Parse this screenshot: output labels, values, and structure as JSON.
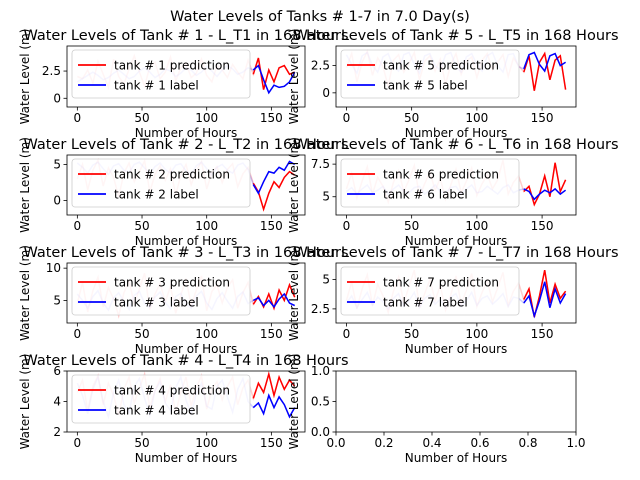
{
  "suptitle": "Water Levels of Tanks # 1-7 in 7.0 Day(s)",
  "chart_data": [
    {
      "type": "line",
      "title": "Water Levels of Tank # 1 - L_T1 in 168 Hours",
      "xlabel": "Number of Hours",
      "ylabel": "Water Level (m)",
      "xlim": [
        -8,
        176
      ],
      "ylim": [
        -0.8,
        4.8
      ],
      "xticks": [
        0,
        50,
        100,
        150
      ],
      "yticks": [
        0,
        2.5
      ],
      "legend_position": "upper left",
      "series": [
        {
          "name": "tank # 1 prediction",
          "color": "#ff0000",
          "x0": 0,
          "x_step": 4,
          "values": [
            2.0,
            1.8,
            2.6,
            1.4,
            3.4,
            2.2,
            1.0,
            3.6,
            2.0,
            1.3,
            2.7,
            3.9,
            2.4,
            1.1,
            2.9,
            3.3,
            1.8,
            2.4,
            3.8,
            1.6,
            2.8,
            3.2,
            1.9,
            2.3,
            3.6,
            2.1,
            1.5,
            3.0,
            2.6,
            1.9,
            3.1,
            2.4,
            1.8,
            3.5,
            2.2,
            3.7,
            0.8,
            2.6,
            1.5,
            2.8,
            3.0,
            2.2,
            2.4
          ]
        },
        {
          "name": "tank # 1 label",
          "color": "#0000ff",
          "x0": 0,
          "x_step": 4,
          "values": [
            1.5,
            1.8,
            2.1,
            2.4,
            2.1,
            1.7,
            1.9,
            2.3,
            2.6,
            2.2,
            1.8,
            2.0,
            2.5,
            2.8,
            2.4,
            1.9,
            2.2,
            2.7,
            2.5,
            2.0,
            2.3,
            2.8,
            2.6,
            2.1,
            2.4,
            2.9,
            2.5,
            2.0,
            2.6,
            3.0,
            2.7,
            2.2,
            2.4,
            2.8,
            2.6,
            3.0,
            1.7,
            0.5,
            1.2,
            1.0,
            1.1,
            1.5,
            2.4
          ]
        }
      ],
      "forecast_from": 136
    },
    {
      "type": "line",
      "title": "Water Levels of Tank # 5 - L_T5 in 168 Hours",
      "xlabel": "Number of Hours",
      "ylabel": "Water Level (m)",
      "xlim": [
        -8,
        176
      ],
      "ylim": [
        -1.3,
        4.3
      ],
      "xticks": [
        0,
        50,
        100,
        150
      ],
      "yticks": [
        0,
        2.5
      ],
      "legend_position": "upper left",
      "series": [
        {
          "name": "tank # 5 prediction",
          "color": "#ff0000",
          "x0": 0,
          "x_step": 4,
          "values": [
            2.3,
            3.6,
            1.0,
            2.8,
            3.8,
            1.6,
            3.2,
            2.4,
            0.6,
            3.0,
            3.5,
            1.9,
            2.7,
            3.7,
            1.2,
            2.9,
            3.4,
            2.0,
            3.1,
            0.8,
            2.6,
            3.6,
            1.7,
            2.9,
            3.3,
            1.4,
            3.0,
            3.6,
            2.1,
            2.8,
            3.5,
            1.5,
            3.2,
            2.5,
            1.9,
            3.4,
            0.2,
            2.8,
            3.6,
            1.2,
            3.0,
            3.4,
            0.3
          ]
        },
        {
          "name": "tank # 5 label",
          "color": "#0000ff",
          "x0": 0,
          "x_step": 4,
          "values": [
            3.5,
            2.6,
            1.8,
            3.4,
            3.7,
            2.5,
            1.9,
            3.3,
            3.6,
            2.4,
            2.0,
            3.5,
            3.7,
            2.6,
            1.8,
            3.4,
            3.6,
            2.5,
            2.1,
            3.5,
            3.7,
            2.4,
            1.9,
            3.3,
            3.6,
            2.6,
            2.0,
            3.4,
            3.7,
            2.5,
            1.9,
            3.5,
            3.6,
            2.4,
            2.2,
            3.5,
            3.7,
            2.6,
            2.0,
            3.4,
            3.6,
            2.5,
            2.8
          ]
        }
      ],
      "forecast_from": 136
    },
    {
      "type": "line",
      "title": "Water Levels of Tank # 2 - L_T2 in 168 Hours",
      "xlabel": "Number of Hours",
      "ylabel": "Water Level (m)",
      "xlim": [
        -8,
        176
      ],
      "ylim": [
        -2.0,
        6.3
      ],
      "xticks": [
        0,
        50,
        100,
        150
      ],
      "yticks": [
        0,
        5
      ],
      "legend_position": "upper left",
      "series": [
        {
          "name": "tank # 2 prediction",
          "color": "#ff0000",
          "x0": 0,
          "x_step": 4,
          "values": [
            3.0,
            5.0,
            1.5,
            4.2,
            5.6,
            2.0,
            4.5,
            3.2,
            0.5,
            3.8,
            5.2,
            2.6,
            4.0,
            5.5,
            1.2,
            3.6,
            4.8,
            2.8,
            4.4,
            0.8,
            3.5,
            5.0,
            2.2,
            4.1,
            5.4,
            1.6,
            3.9,
            4.7,
            2.5,
            4.3,
            5.1,
            1.9,
            3.7,
            4.6,
            2.4,
            1.2,
            -1.2,
            1.0,
            2.6,
            1.8,
            3.2,
            4.0,
            3.5
          ]
        },
        {
          "name": "tank # 2 label",
          "color": "#0000ff",
          "x0": 0,
          "x_step": 4,
          "values": [
            5.2,
            4.6,
            3.8,
            4.9,
            5.3,
            4.4,
            3.6,
            4.8,
            5.1,
            4.2,
            3.9,
            5.0,
            5.3,
            4.5,
            3.7,
            4.7,
            5.2,
            4.3,
            3.8,
            4.9,
            5.1,
            4.1,
            3.6,
            4.8,
            5.3,
            4.4,
            3.5,
            4.6,
            5.0,
            4.2,
            3.8,
            4.9,
            5.2,
            4.3,
            2.2,
            1.0,
            2.6,
            4.0,
            3.8,
            4.6,
            4.2,
            5.4,
            5.0
          ]
        }
      ],
      "forecast_from": 136
    },
    {
      "type": "line",
      "title": "Water Levels of Tank # 6 - L_T6 in 168 Hours",
      "xlabel": "Number of Hours",
      "ylabel": "Water Level (m)",
      "xlim": [
        -8,
        176
      ],
      "ylim": [
        3.6,
        8.2
      ],
      "xticks": [
        0,
        50,
        100,
        150
      ],
      "yticks": [
        5.0,
        7.5
      ],
      "legend_position": "upper left",
      "series": [
        {
          "name": "tank # 6 prediction",
          "color": "#ff0000",
          "x0": 0,
          "x_step": 4,
          "values": [
            5.6,
            6.8,
            4.9,
            6.2,
            7.3,
            5.2,
            6.5,
            5.8,
            4.6,
            6.1,
            7.0,
            5.4,
            6.3,
            7.4,
            5.0,
            6.0,
            6.9,
            5.5,
            6.4,
            4.8,
            5.9,
            7.1,
            5.3,
            6.2,
            7.2,
            5.1,
            6.0,
            6.7,
            5.6,
            6.3,
            7.8,
            5.2,
            6.1,
            6.6,
            5.4,
            5.8,
            4.4,
            5.2,
            6.6,
            5.0,
            7.6,
            5.4,
            6.3
          ]
        },
        {
          "name": "tank # 6 label",
          "color": "#0000ff",
          "x0": 0,
          "x_step": 4,
          "values": [
            5.4,
            5.7,
            5.2,
            5.6,
            5.9,
            5.3,
            5.5,
            5.8,
            5.2,
            5.6,
            5.9,
            5.4,
            5.3,
            5.7,
            5.8,
            5.2,
            5.5,
            5.9,
            5.4,
            5.3,
            5.7,
            5.8,
            5.2,
            5.6,
            5.9,
            5.3,
            5.4,
            5.8,
            5.5,
            5.2,
            5.7,
            5.9,
            5.3,
            5.5,
            5.6,
            5.4,
            4.8,
            5.2,
            5.5,
            5.3,
            5.6,
            5.2,
            5.5
          ]
        }
      ],
      "forecast_from": 136
    },
    {
      "type": "line",
      "title": "Water Levels of Tank # 3 - L_T3 in 168 Hours",
      "xlabel": "Number of Hours",
      "ylabel": "Water Level (m)",
      "xlim": [
        -8,
        176
      ],
      "ylim": [
        1.5,
        10.8
      ],
      "xticks": [
        0,
        50,
        100,
        150
      ],
      "yticks": [
        5,
        10
      ],
      "legend_position": "upper left",
      "series": [
        {
          "name": "tank # 3 prediction",
          "color": "#ff0000",
          "x0": 0,
          "x_step": 4,
          "values": [
            4.5,
            7.8,
            3.2,
            6.5,
            8.6,
            4.0,
            7.0,
            5.2,
            2.6,
            6.2,
            8.0,
            4.4,
            6.8,
            9.2,
            3.6,
            6.0,
            7.6,
            4.8,
            7.2,
            3.0,
            5.8,
            8.4,
            4.2,
            6.6,
            8.8,
            3.4,
            6.4,
            7.4,
            4.6,
            7.0,
            8.2,
            3.8,
            6.2,
            7.8,
            4.4,
            5.6,
            4.0,
            6.0,
            3.8,
            6.6,
            5.0,
            7.4,
            5.5
          ]
        },
        {
          "name": "tank # 3 label",
          "color": "#0000ff",
          "x0": 0,
          "x_step": 4,
          "values": [
            6.0,
            5.0,
            3.8,
            5.6,
            6.5,
            4.6,
            3.5,
            5.4,
            6.2,
            4.8,
            3.6,
            5.8,
            6.4,
            4.5,
            3.9,
            5.5,
            6.3,
            4.7,
            3.7,
            5.6,
            6.1,
            4.4,
            3.8,
            5.7,
            6.4,
            4.6,
            3.6,
            5.3,
            6.2,
            4.9,
            3.8,
            5.6,
            6.3,
            4.5,
            5.0,
            5.4,
            4.2,
            5.0,
            4.0,
            5.2,
            6.0,
            4.6,
            4.2
          ]
        }
      ],
      "forecast_from": 136
    },
    {
      "type": "line",
      "title": "Water Levels of Tank # 7 - L_T7 in 168 Hours",
      "xlabel": "Number of Hours",
      "ylabel": "Water Level (m)",
      "xlim": [
        -8,
        176
      ],
      "ylim": [
        1.3,
        6.4
      ],
      "xticks": [
        0,
        50,
        100,
        150
      ],
      "yticks": [
        2.5,
        5.0
      ],
      "legend_position": "upper left",
      "series": [
        {
          "name": "tank # 7 prediction",
          "color": "#ff0000",
          "x0": 0,
          "x_step": 4,
          "values": [
            3.2,
            4.8,
            2.5,
            4.2,
            5.4,
            2.8,
            4.6,
            3.6,
            2.2,
            4.0,
            5.2,
            3.0,
            4.4,
            5.8,
            2.6,
            3.8,
            5.0,
            3.2,
            4.5,
            2.4,
            3.7,
            5.3,
            2.9,
            4.1,
            5.5,
            2.7,
            3.9,
            4.9,
            3.1,
            4.3,
            5.6,
            2.8,
            4.0,
            4.7,
            3.3,
            4.2,
            1.8,
            3.6,
            5.8,
            3.0,
            4.6,
            3.4,
            4.0
          ]
        },
        {
          "name": "tank # 7 label",
          "color": "#0000ff",
          "x0": 0,
          "x_step": 4,
          "values": [
            3.0,
            3.6,
            2.6,
            3.3,
            3.9,
            2.8,
            3.5,
            3.1,
            2.5,
            3.4,
            3.8,
            2.7,
            3.2,
            3.9,
            2.6,
            3.4,
            3.7,
            2.9,
            3.3,
            2.6,
            3.5,
            3.8,
            2.7,
            3.2,
            3.9,
            2.8,
            3.4,
            3.6,
            2.9,
            3.3,
            3.8,
            2.7,
            3.5,
            3.4,
            3.0,
            3.6,
            1.9,
            3.2,
            4.8,
            2.6,
            4.2,
            3.0,
            3.8
          ]
        }
      ],
      "forecast_from": 136
    },
    {
      "type": "line",
      "title": "Water Levels of Tank # 4 - L_T4 in 168 Hours",
      "xlabel": "Number of Hours",
      "ylabel": "Water Level (m)",
      "xlim": [
        -8,
        176
      ],
      "ylim": [
        2.0,
        6.0
      ],
      "xticks": [
        0,
        50,
        100,
        150
      ],
      "yticks": [
        2,
        4,
        6
      ],
      "legend_position": "upper left",
      "series": [
        {
          "name": "tank # 4 prediction",
          "color": "#ff0000",
          "x0": 0,
          "x_step": 4,
          "values": [
            4.6,
            5.4,
            3.4,
            5.0,
            5.7,
            3.8,
            5.2,
            4.4,
            3.1,
            4.8,
            5.6,
            3.9,
            4.9,
            5.8,
            3.6,
            4.7,
            5.5,
            4.0,
            5.1,
            3.3,
            4.6,
            5.6,
            3.7,
            4.9,
            5.7,
            3.5,
            4.8,
            5.3,
            4.1,
            5.0,
            5.6,
            3.8,
            4.9,
            5.4,
            4.2,
            5.2,
            4.6,
            5.8,
            4.4,
            5.6,
            4.8,
            5.4,
            5.0
          ]
        },
        {
          "name": "tank # 4 label",
          "color": "#0000ff",
          "x0": 0,
          "x_step": 4,
          "values": [
            5.2,
            4.4,
            3.2,
            4.8,
            5.6,
            4.0,
            3.0,
            4.6,
            5.4,
            3.8,
            3.3,
            5.0,
            5.5,
            4.2,
            3.1,
            4.7,
            5.3,
            3.9,
            3.4,
            4.9,
            5.6,
            4.1,
            3.2,
            4.5,
            5.2,
            3.7,
            3.5,
            5.0,
            5.4,
            4.3,
            3.3,
            4.8,
            5.5,
            4.0,
            3.6,
            3.9,
            3.2,
            4.4,
            3.6,
            4.3,
            3.8,
            3.0,
            3.6
          ]
        }
      ],
      "forecast_from": 136
    },
    {
      "type": "line",
      "title": "",
      "xlabel": "Number of Hours",
      "ylabel": "Water Level (m)",
      "xlim": [
        0,
        1
      ],
      "ylim": [
        0,
        1
      ],
      "xticks": [
        0.0,
        0.2,
        0.4,
        0.6,
        0.8,
        1.0
      ],
      "yticks": [
        0.0,
        0.5,
        1.0
      ],
      "tick_format": "1dp",
      "series": []
    }
  ]
}
